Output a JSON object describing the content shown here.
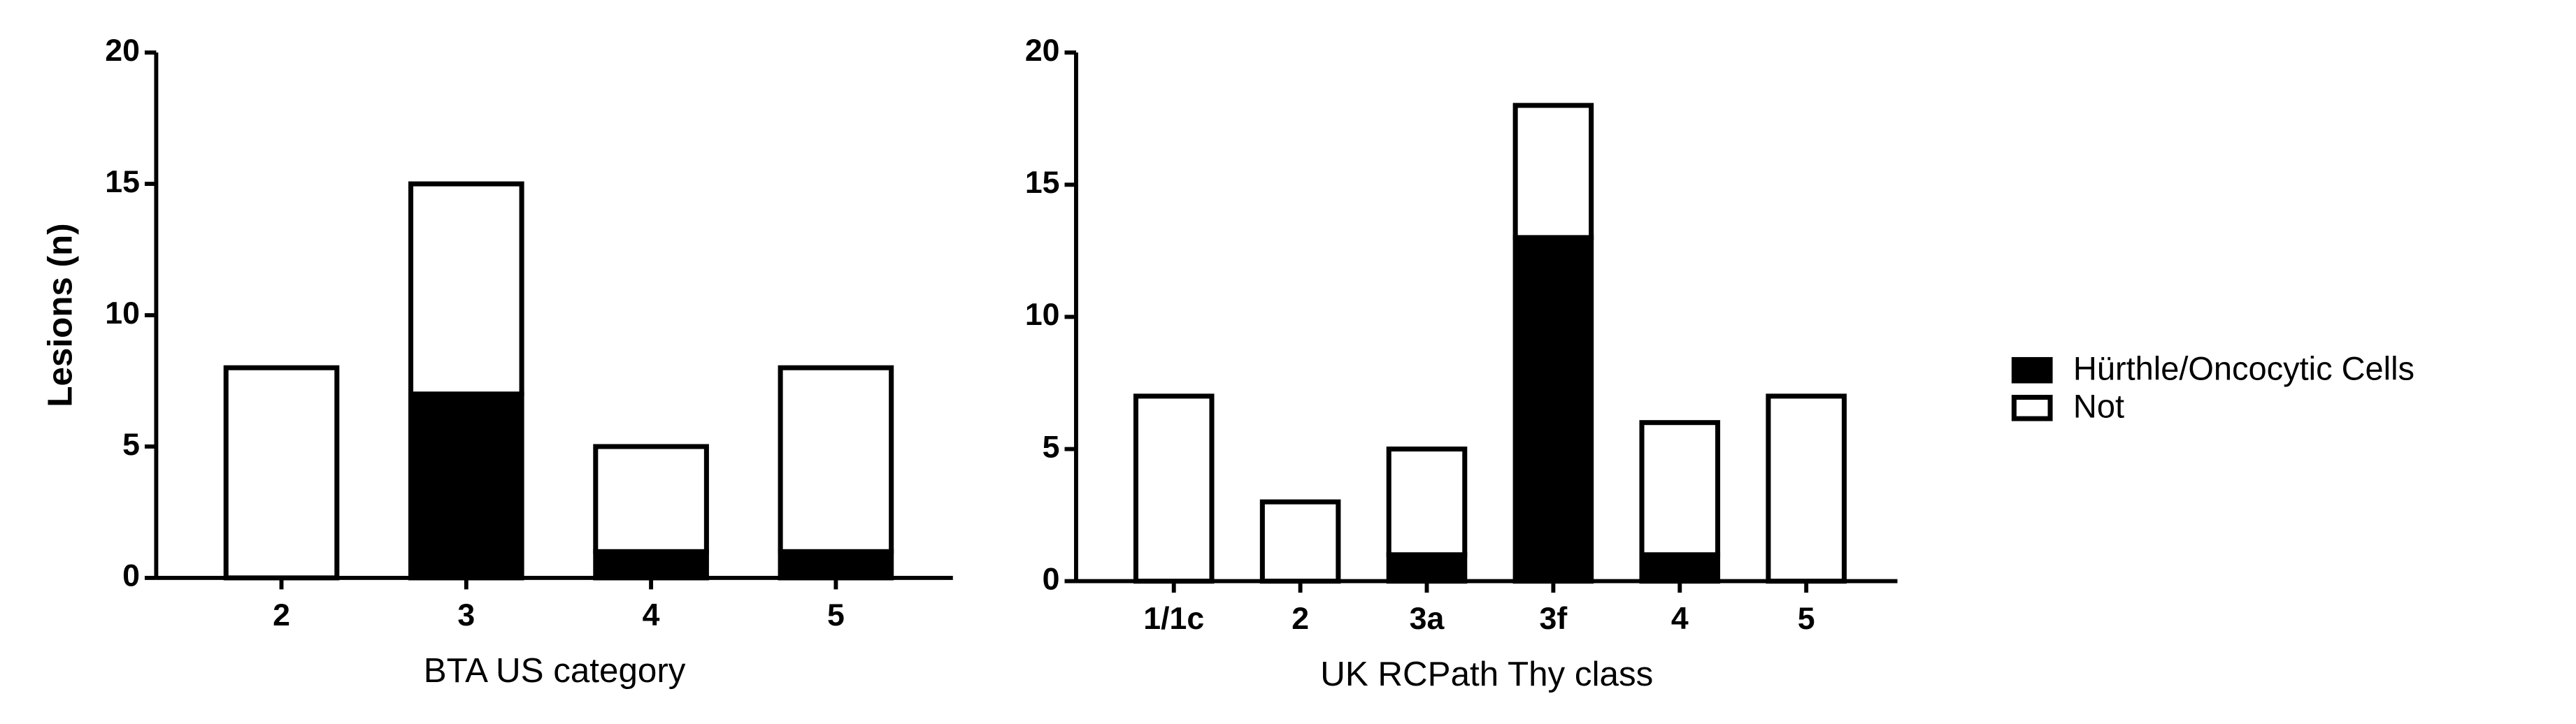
{
  "chart_data": [
    {
      "type": "bar",
      "stacked": true,
      "xlabel": "BTA US category",
      "ylabel": "Lesions (n)",
      "categories": [
        "2",
        "3",
        "4",
        "5"
      ],
      "series": [
        {
          "name": "Hürthle/Oncocytic Cells",
          "color": "#000000",
          "values": [
            0,
            7,
            1,
            1
          ]
        },
        {
          "name": "Not",
          "color": "#ffffff",
          "values": [
            8,
            8,
            4,
            7
          ]
        }
      ],
      "ylim": [
        0,
        20
      ],
      "yticks": [
        0,
        5,
        10,
        15,
        20
      ]
    },
    {
      "type": "bar",
      "stacked": true,
      "xlabel": "UK RCPath Thy class",
      "categories": [
        "1/1c",
        "2",
        "3a",
        "3f",
        "4",
        "5"
      ],
      "series": [
        {
          "name": "Hürthle/Oncocytic Cells",
          "color": "#000000",
          "values": [
            0,
            0,
            1,
            13,
            1,
            0
          ]
        },
        {
          "name": "Not",
          "color": "#ffffff",
          "values": [
            7,
            3,
            4,
            5,
            5,
            7
          ]
        }
      ],
      "ylim": [
        0,
        20
      ],
      "yticks": [
        0,
        5,
        10,
        15,
        20
      ]
    }
  ]
}
